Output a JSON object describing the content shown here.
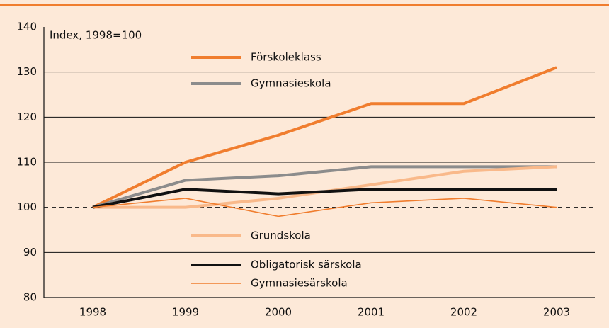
{
  "chart_data": {
    "type": "line",
    "annotation": "Index, 1998=100",
    "categories": [
      "1998",
      "1999",
      "2000",
      "2001",
      "2002",
      "2003"
    ],
    "series": [
      {
        "name": "Förskoleklass",
        "color": "#f07d2e",
        "width": 4,
        "values": [
          100,
          110,
          116,
          123,
          123,
          131
        ]
      },
      {
        "name": "Gymnasieskola",
        "color": "#8c8c8c",
        "width": 4,
        "values": [
          100,
          106,
          107,
          109,
          109,
          109
        ]
      },
      {
        "name": "Grundskola",
        "color": "#f9b98a",
        "width": 4,
        "values": [
          100,
          100,
          102,
          105,
          108,
          109
        ]
      },
      {
        "name": "Obligatorisk särskola",
        "color": "#111111",
        "width": 4,
        "values": [
          100,
          104,
          103,
          104,
          104,
          104
        ]
      },
      {
        "name": "Gymnasiesärskola",
        "color": "#f07d2e",
        "width": 1.6,
        "values": [
          100,
          102,
          98,
          101,
          102,
          100
        ]
      }
    ],
    "ylim": [
      80,
      140
    ],
    "yticks": [
      80,
      90,
      100,
      110,
      120,
      130,
      140
    ],
    "grid": true,
    "baseline": 100
  }
}
